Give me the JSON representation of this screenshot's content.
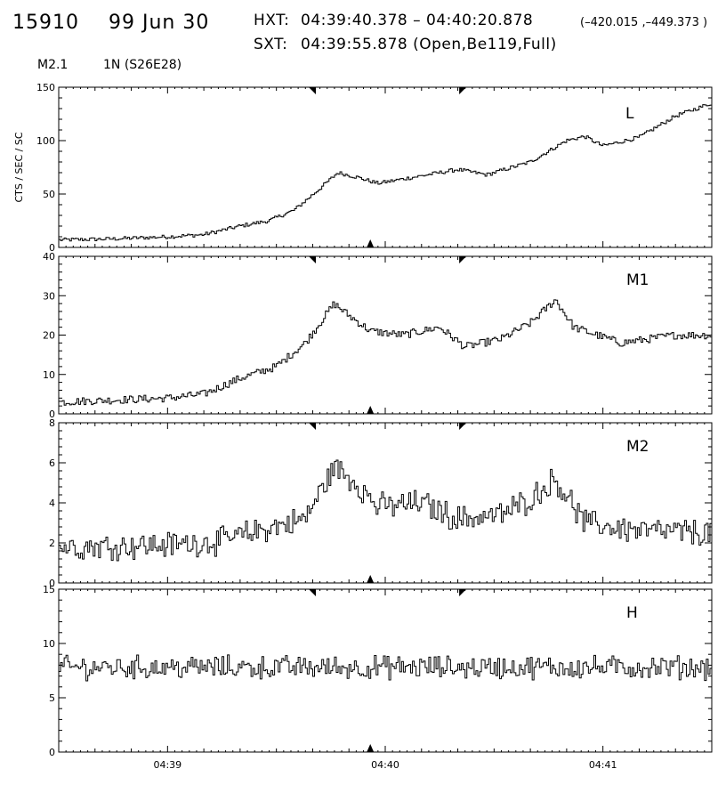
{
  "header": {
    "flare_id": "15910",
    "date": "99 Jun 30",
    "hxt_label": "HXT:",
    "hxt_range": "04:39:40.378 – 04:40:20.878",
    "hxt_coords": "(–420.015 ,–449.373 )",
    "sxt_label": "SXT:",
    "sxt_time": "04:39:55.878 (Open,Be119,Full)",
    "goes_class": "M2.1",
    "location": "1N (S26E28)"
  },
  "chart_data": {
    "type": "line",
    "ylabel": "CTS / SEC / SC",
    "xlim": [
      "04:38:30",
      "04:41:30"
    ],
    "x_ticks": [
      "04:39",
      "04:40",
      "04:41"
    ],
    "markers": {
      "hxt_interval": [
        "04:39:40.378",
        "04:40:20.878"
      ],
      "sxt_time": "04:39:55.878"
    },
    "panels": [
      {
        "name": "L",
        "ylim": [
          0,
          150
        ],
        "yticks": [
          "0",
          "50",
          "100",
          "150"
        ],
        "points": [
          [
            "04:38:30",
            7
          ],
          [
            "04:38:45",
            8
          ],
          [
            "04:39:00",
            10
          ],
          [
            "04:39:10",
            12
          ],
          [
            "04:39:20",
            20
          ],
          [
            "04:39:28",
            25
          ],
          [
            "04:39:35",
            35
          ],
          [
            "04:39:42",
            55
          ],
          [
            "04:39:47",
            70
          ],
          [
            "04:39:52",
            66
          ],
          [
            "04:39:58",
            60
          ],
          [
            "04:40:10",
            67
          ],
          [
            "04:40:20",
            73
          ],
          [
            "04:40:28",
            68
          ],
          [
            "04:40:40",
            80
          ],
          [
            "04:40:50",
            100
          ],
          [
            "04:40:55",
            104
          ],
          [
            "04:41:00",
            95
          ],
          [
            "04:41:10",
            103
          ],
          [
            "04:41:20",
            123
          ],
          [
            "04:41:30",
            135
          ]
        ]
      },
      {
        "name": "M1",
        "ylim": [
          0,
          40
        ],
        "yticks": [
          "0",
          "10",
          "20",
          "30",
          "40"
        ],
        "points": [
          [
            "04:38:30",
            3
          ],
          [
            "04:38:45",
            3.5
          ],
          [
            "04:39:00",
            4
          ],
          [
            "04:39:10",
            5
          ],
          [
            "04:39:20",
            9
          ],
          [
            "04:39:30",
            12
          ],
          [
            "04:39:38",
            18
          ],
          [
            "04:39:46",
            28
          ],
          [
            "04:39:50",
            25
          ],
          [
            "04:39:56",
            21
          ],
          [
            "04:40:05",
            20
          ],
          [
            "04:40:15",
            22
          ],
          [
            "04:40:22",
            17
          ],
          [
            "04:40:32",
            19
          ],
          [
            "04:40:40",
            23
          ],
          [
            "04:40:47",
            29
          ],
          [
            "04:40:52",
            22
          ],
          [
            "04:41:05",
            18
          ],
          [
            "04:41:20",
            20
          ],
          [
            "04:41:30",
            20
          ]
        ]
      },
      {
        "name": "M2",
        "ylim": [
          0,
          8
        ],
        "yticks": [
          "0",
          "2",
          "4",
          "6",
          "8"
        ],
        "points": [
          [
            "04:38:30",
            1.8
          ],
          [
            "04:39:00",
            1.9
          ],
          [
            "04:39:15",
            2.1
          ],
          [
            "04:39:25",
            2.6
          ],
          [
            "04:39:38",
            3.2
          ],
          [
            "04:39:46",
            5.8
          ],
          [
            "04:39:52",
            5.0
          ],
          [
            "04:39:58",
            3.8
          ],
          [
            "04:40:10",
            4.0
          ],
          [
            "04:40:20",
            3.2
          ],
          [
            "04:40:32",
            3.4
          ],
          [
            "04:40:40",
            4.2
          ],
          [
            "04:40:47",
            5.2
          ],
          [
            "04:40:55",
            3.0
          ],
          [
            "04:41:10",
            2.6
          ],
          [
            "04:41:30",
            2.5
          ]
        ]
      },
      {
        "name": "H",
        "ylim": [
          0,
          15
        ],
        "yticks": [
          "0",
          "5",
          "10",
          "15"
        ],
        "points": [
          [
            "04:38:30",
            7.8
          ],
          [
            "04:41:30",
            7.8
          ]
        ]
      }
    ]
  }
}
